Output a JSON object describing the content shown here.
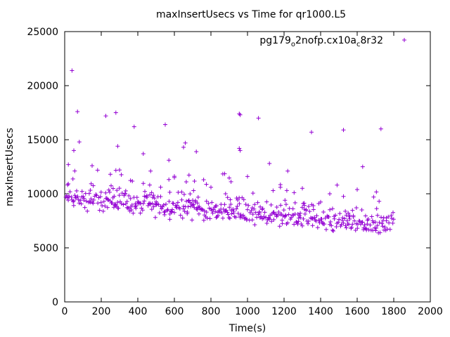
{
  "chart_data": {
    "type": "scatter",
    "title": "maxInsertUsecs vs Time for qr1000.L5",
    "xlabel": "Time(s)",
    "ylabel": "maxInsertUsecs",
    "xlim": [
      0,
      2000
    ],
    "ylim": [
      0,
      25000
    ],
    "xticks": [
      0,
      200,
      400,
      600,
      800,
      1000,
      1200,
      1400,
      1600,
      1800,
      2000
    ],
    "yticks": [
      0,
      5000,
      10000,
      15000,
      20000,
      25000
    ],
    "grid": false,
    "legend_position": "top-right",
    "series": [
      {
        "name_parts": [
          "pg179",
          "o",
          "2nofp.cx10a",
          "c",
          "8r32"
        ],
        "color": "#9400d3",
        "x_start": 5,
        "x_end": 1800,
        "x_step": 5,
        "trend_start": 9600,
        "trend_end": 7000,
        "spread": 900,
        "outliers": [
          [
            40,
            21400
          ],
          [
            70,
            17600
          ],
          [
            80,
            14800
          ],
          [
            20,
            12700
          ],
          [
            50,
            14000
          ],
          [
            225,
            17200
          ],
          [
            280,
            17500
          ],
          [
            290,
            14400
          ],
          [
            380,
            16200
          ],
          [
            550,
            16400
          ],
          [
            660,
            14700
          ],
          [
            650,
            14300
          ],
          [
            430,
            13700
          ],
          [
            570,
            13100
          ],
          [
            720,
            13900
          ],
          [
            955,
            17400
          ],
          [
            960,
            17300
          ],
          [
            955,
            14200
          ],
          [
            960,
            14000
          ],
          [
            1060,
            17000
          ],
          [
            1120,
            12800
          ],
          [
            1220,
            12100
          ],
          [
            1350,
            15700
          ],
          [
            1525,
            15900
          ],
          [
            1630,
            12500
          ],
          [
            1730,
            16000
          ],
          [
            300,
            12200
          ],
          [
            150,
            12600
          ],
          [
            470,
            12100
          ],
          [
            250,
            11800
          ],
          [
            600,
            11500
          ],
          [
            800,
            10600
          ],
          [
            1000,
            11600
          ],
          [
            1180,
            10600
          ],
          [
            1300,
            10500
          ],
          [
            1450,
            10000
          ],
          [
            1690,
            9700
          ],
          [
            1720,
            9300
          ],
          [
            760,
            11300
          ],
          [
            880,
            10000
          ]
        ]
      }
    ]
  }
}
